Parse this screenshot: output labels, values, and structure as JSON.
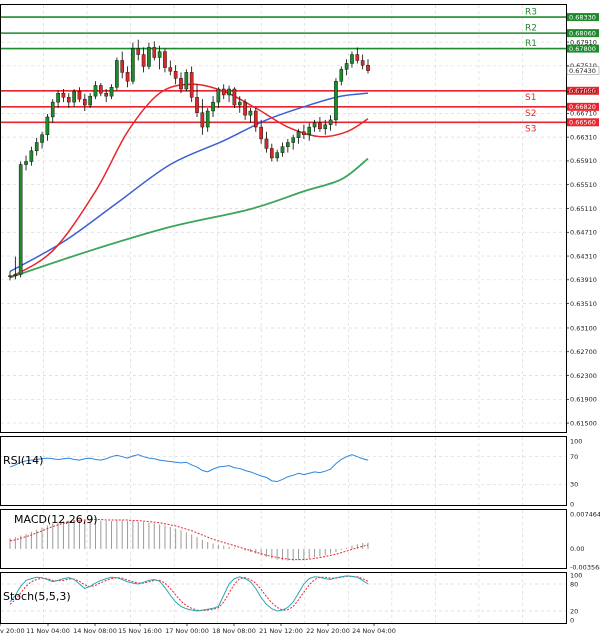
{
  "chart_data": {
    "type": "candlestick",
    "instrument_note": "",
    "colors": {
      "bull": "#1f8a2c",
      "bear": "#d42a2a",
      "ma_fast": "#e8252c",
      "ma_mid": "#3d5fd1",
      "ma_slow": "#3aa55b",
      "resistance": "#1f8a2c",
      "support": "#e8252c",
      "grid": "#d8d8d8",
      "rsi": "#2e86de",
      "macd_hist": "#9a9a9a",
      "macd_signal": "#e8252c",
      "stoch_main": "#2aa6b5",
      "stoch_signal": "#e8252c"
    },
    "price_axis": {
      "min": 0.6135,
      "max": 0.6855,
      "ticks": [
        "0.67910",
        "0.67510",
        "0.67080",
        "0.66710",
        "0.66310",
        "0.65910",
        "0.65510",
        "0.65110",
        "0.64710",
        "0.64310",
        "0.63910",
        "0.63510",
        "0.63100",
        "0.62700",
        "0.62300",
        "0.61900",
        "0.61500"
      ]
    },
    "levels": [
      {
        "name": "R3",
        "value": 0.6833,
        "label": "0.68330",
        "kind": "resistance"
      },
      {
        "name": "R2",
        "value": 0.6806,
        "label": "0.68060",
        "kind": "resistance"
      },
      {
        "name": "R1",
        "value": 0.678,
        "label": "0.67800",
        "kind": "resistance"
      },
      {
        "name": "S1",
        "value": 0.6709,
        "label": "0.67090",
        "kind": "support"
      },
      {
        "name": "S2",
        "value": 0.6682,
        "label": "0.66820",
        "kind": "support"
      },
      {
        "name": "S3",
        "value": 0.6656,
        "label": "0.66560",
        "kind": "support"
      }
    ],
    "current_price": {
      "value": 0.6743,
      "label": "0.67430"
    },
    "x_labels": [
      "v 20:00",
      "11 Nov 04:00",
      "14 Nov 08:00",
      "15 Nov 16:00",
      "17 Nov 00:00",
      "18 Nov 08:00",
      "21 Nov 12:00",
      "22 Nov 20:00",
      "24 Nov 04:00"
    ],
    "candles": [
      [
        0.6397,
        0.6405,
        0.639,
        0.6398
      ],
      [
        0.6398,
        0.643,
        0.6392,
        0.64
      ],
      [
        0.64,
        0.659,
        0.6395,
        0.6585
      ],
      [
        0.6585,
        0.66,
        0.6575,
        0.659
      ],
      [
        0.659,
        0.6615,
        0.6583,
        0.6608
      ],
      [
        0.6608,
        0.663,
        0.66,
        0.6622
      ],
      [
        0.6622,
        0.664,
        0.6612,
        0.6635
      ],
      [
        0.6635,
        0.667,
        0.6625,
        0.6665
      ],
      [
        0.6665,
        0.6695,
        0.6655,
        0.669
      ],
      [
        0.669,
        0.671,
        0.668,
        0.6705
      ],
      [
        0.6705,
        0.6712,
        0.669,
        0.6698
      ],
      [
        0.6698,
        0.6705,
        0.668,
        0.669
      ],
      [
        0.669,
        0.6712,
        0.6682,
        0.6708
      ],
      [
        0.6708,
        0.6715,
        0.669,
        0.6695
      ],
      [
        0.6695,
        0.6704,
        0.6675,
        0.6685
      ],
      [
        0.6685,
        0.6705,
        0.668,
        0.67
      ],
      [
        0.67,
        0.6725,
        0.6695,
        0.6718
      ],
      [
        0.6718,
        0.6722,
        0.67,
        0.6705
      ],
      [
        0.6705,
        0.6712,
        0.669,
        0.67
      ],
      [
        0.67,
        0.672,
        0.6695,
        0.6715
      ],
      [
        0.6715,
        0.6765,
        0.671,
        0.676
      ],
      [
        0.676,
        0.6775,
        0.673,
        0.674
      ],
      [
        0.674,
        0.675,
        0.6715,
        0.6725
      ],
      [
        0.6725,
        0.679,
        0.672,
        0.678
      ],
      [
        0.678,
        0.6795,
        0.676,
        0.677
      ],
      [
        0.677,
        0.6782,
        0.674,
        0.675
      ],
      [
        0.675,
        0.679,
        0.6745,
        0.6782
      ],
      [
        0.6782,
        0.6792,
        0.676,
        0.6765
      ],
      [
        0.6765,
        0.6785,
        0.6745,
        0.6775
      ],
      [
        0.6775,
        0.678,
        0.674,
        0.6748
      ],
      [
        0.6748,
        0.676,
        0.6735,
        0.6742
      ],
      [
        0.6742,
        0.6752,
        0.672,
        0.673
      ],
      [
        0.673,
        0.674,
        0.6705,
        0.6712
      ],
      [
        0.6712,
        0.6745,
        0.6708,
        0.674
      ],
      [
        0.674,
        0.675,
        0.669,
        0.6698
      ],
      [
        0.6698,
        0.672,
        0.6665,
        0.6672
      ],
      [
        0.6672,
        0.6695,
        0.6635,
        0.6648
      ],
      [
        0.6648,
        0.668,
        0.664,
        0.6675
      ],
      [
        0.6675,
        0.67,
        0.6665,
        0.669
      ],
      [
        0.669,
        0.6715,
        0.668,
        0.6712
      ],
      [
        0.6712,
        0.672,
        0.6695,
        0.6702
      ],
      [
        0.6702,
        0.6718,
        0.669,
        0.6712
      ],
      [
        0.6712,
        0.6715,
        0.668,
        0.6685
      ],
      [
        0.6685,
        0.67,
        0.6672,
        0.669
      ],
      [
        0.669,
        0.6695,
        0.666,
        0.6668
      ],
      [
        0.6668,
        0.668,
        0.6655,
        0.6675
      ],
      [
        0.6675,
        0.668,
        0.664,
        0.6648
      ],
      [
        0.6648,
        0.666,
        0.662,
        0.6628
      ],
      [
        0.6628,
        0.664,
        0.6605,
        0.6612
      ],
      [
        0.6612,
        0.662,
        0.659,
        0.6596
      ],
      [
        0.6596,
        0.661,
        0.659,
        0.6605
      ],
      [
        0.6605,
        0.6622,
        0.6598,
        0.6615
      ],
      [
        0.6615,
        0.6628,
        0.6605,
        0.6622
      ],
      [
        0.6622,
        0.6635,
        0.661,
        0.663
      ],
      [
        0.663,
        0.6645,
        0.662,
        0.664
      ],
      [
        0.664,
        0.6652,
        0.6628,
        0.6635
      ],
      [
        0.6635,
        0.6655,
        0.6625,
        0.6648
      ],
      [
        0.6648,
        0.666,
        0.664,
        0.6655
      ],
      [
        0.6655,
        0.6665,
        0.664,
        0.6645
      ],
      [
        0.6645,
        0.666,
        0.6635,
        0.6652
      ],
      [
        0.6652,
        0.6668,
        0.6642,
        0.666
      ],
      [
        0.666,
        0.673,
        0.665,
        0.6725
      ],
      [
        0.6725,
        0.675,
        0.6718,
        0.6745
      ],
      [
        0.6745,
        0.6762,
        0.6735,
        0.6755
      ],
      [
        0.6755,
        0.6775,
        0.6748,
        0.677
      ],
      [
        0.677,
        0.6782,
        0.6755,
        0.676
      ],
      [
        0.676,
        0.677,
        0.6745,
        0.6752
      ],
      [
        0.6752,
        0.6762,
        0.6738,
        0.6743
      ]
    ],
    "ma_fast": [
      [
        0,
        0.6395
      ],
      [
        8,
        0.644
      ],
      [
        16,
        0.654
      ],
      [
        22,
        0.664
      ],
      [
        28,
        0.6705
      ],
      [
        34,
        0.672
      ],
      [
        40,
        0.6708
      ],
      [
        46,
        0.668
      ],
      [
        52,
        0.6648
      ],
      [
        58,
        0.6632
      ],
      [
        63,
        0.664
      ],
      [
        67,
        0.6662
      ]
    ],
    "ma_mid": [
      [
        0,
        0.6405
      ],
      [
        10,
        0.6455
      ],
      [
        20,
        0.652
      ],
      [
        30,
        0.6585
      ],
      [
        40,
        0.6625
      ],
      [
        48,
        0.666
      ],
      [
        56,
        0.6685
      ],
      [
        62,
        0.67
      ],
      [
        67,
        0.6705
      ]
    ],
    "ma_slow": [
      [
        0,
        0.6395
      ],
      [
        15,
        0.644
      ],
      [
        30,
        0.648
      ],
      [
        45,
        0.651
      ],
      [
        55,
        0.654
      ],
      [
        62,
        0.656
      ],
      [
        67,
        0.6595
      ]
    ],
    "rsi": {
      "label": "RSI(14)",
      "min": 0,
      "max": 100,
      "ticks": [
        "100",
        "70",
        "30",
        "0"
      ],
      "values": [
        55,
        58,
        62,
        64,
        65,
        66,
        67,
        68,
        67,
        66,
        67,
        68,
        66,
        65,
        67,
        68,
        66,
        65,
        67,
        70,
        72,
        70,
        68,
        71,
        73,
        70,
        68,
        67,
        65,
        64,
        63,
        62,
        61,
        62,
        58,
        55,
        50,
        48,
        52,
        55,
        56,
        57,
        54,
        53,
        50,
        48,
        45,
        42,
        40,
        35,
        34,
        37,
        41,
        43,
        46,
        44,
        46,
        48,
        47,
        49,
        52,
        60,
        66,
        70,
        73,
        70,
        67,
        65
      ]
    },
    "macd": {
      "label": "MACD(12,26,9)",
      "ticks": [
        "0.007464",
        "0.00",
        "-0.003568"
      ],
      "min": -0.003568,
      "max": 0.007464,
      "hist": [
        0.002,
        0.0022,
        0.0025,
        0.0028,
        0.0032,
        0.0036,
        0.004,
        0.0044,
        0.0048,
        0.005,
        0.0052,
        0.0053,
        0.0054,
        0.0055,
        0.0055,
        0.0054,
        0.0053,
        0.0053,
        0.0052,
        0.0052,
        0.0053,
        0.0053,
        0.0052,
        0.0052,
        0.0051,
        0.005,
        0.0049,
        0.0048,
        0.0046,
        0.0044,
        0.0041,
        0.0038,
        0.0035,
        0.0031,
        0.0027,
        0.0022,
        0.0017,
        0.0013,
        0.001,
        0.0008,
        0.0006,
        0.0004,
        0.0002,
        0.0,
        -0.0003,
        -0.0006,
        -0.0009,
        -0.0012,
        -0.0015,
        -0.0018,
        -0.002,
        -0.0021,
        -0.0022,
        -0.0022,
        -0.0021,
        -0.002,
        -0.0018,
        -0.0016,
        -0.0014,
        -0.0012,
        -0.0009,
        -0.0006,
        -0.0002,
        0.0002,
        0.0006,
        0.0009,
        0.0011,
        0.0012
      ],
      "signal": [
        0.0015,
        0.0017,
        0.002,
        0.0023,
        0.0026,
        0.003,
        0.0034,
        0.0038,
        0.0042,
        0.0045,
        0.0048,
        0.005,
        0.0052,
        0.0053,
        0.0054,
        0.0055,
        0.0055,
        0.0055,
        0.0054,
        0.0054,
        0.0054,
        0.0054,
        0.0054,
        0.0053,
        0.0053,
        0.0052,
        0.0051,
        0.005,
        0.0049,
        0.0047,
        0.0045,
        0.0043,
        0.004,
        0.0037,
        0.0034,
        0.003,
        0.0026,
        0.0022,
        0.0018,
        0.0015,
        0.0012,
        0.0009,
        0.0006,
        0.0003,
        0.0,
        -0.0003,
        -0.0006,
        -0.0009,
        -0.0012,
        -0.0014,
        -0.0016,
        -0.0018,
        -0.0019,
        -0.002,
        -0.002,
        -0.002,
        -0.0019,
        -0.0018,
        -0.0016,
        -0.0014,
        -0.0012,
        -0.001,
        -0.0007,
        -0.0004,
        -0.0001,
        0.0002,
        0.0005,
        0.0007
      ]
    },
    "stoch": {
      "label": "Stoch(5,5,3)",
      "ticks": [
        "100",
        "80",
        "20",
        "0"
      ],
      "main": [
        40,
        55,
        75,
        88,
        92,
        95,
        94,
        90,
        85,
        88,
        92,
        94,
        90,
        80,
        70,
        75,
        82,
        88,
        92,
        95,
        94,
        90,
        85,
        82,
        80,
        84,
        88,
        90,
        86,
        72,
        55,
        40,
        30,
        25,
        22,
        20,
        22,
        24,
        26,
        30,
        55,
        80,
        92,
        96,
        92,
        85,
        70,
        50,
        35,
        25,
        20,
        22,
        28,
        40,
        60,
        80,
        92,
        96,
        95,
        92,
        90,
        94,
        96,
        98,
        97,
        95,
        88,
        80
      ],
      "signal": [
        35,
        45,
        60,
        75,
        85,
        90,
        93,
        92,
        88,
        87,
        88,
        91,
        91,
        86,
        78,
        74,
        77,
        83,
        88,
        92,
        94,
        93,
        89,
        85,
        82,
        82,
        85,
        88,
        88,
        82,
        70,
        56,
        42,
        32,
        26,
        22,
        21,
        22,
        24,
        27,
        40,
        60,
        80,
        92,
        94,
        90,
        82,
        68,
        52,
        38,
        28,
        22,
        23,
        30,
        45,
        62,
        78,
        90,
        95,
        95,
        93,
        93,
        95,
        97,
        97,
        96,
        92,
        86
      ]
    }
  }
}
